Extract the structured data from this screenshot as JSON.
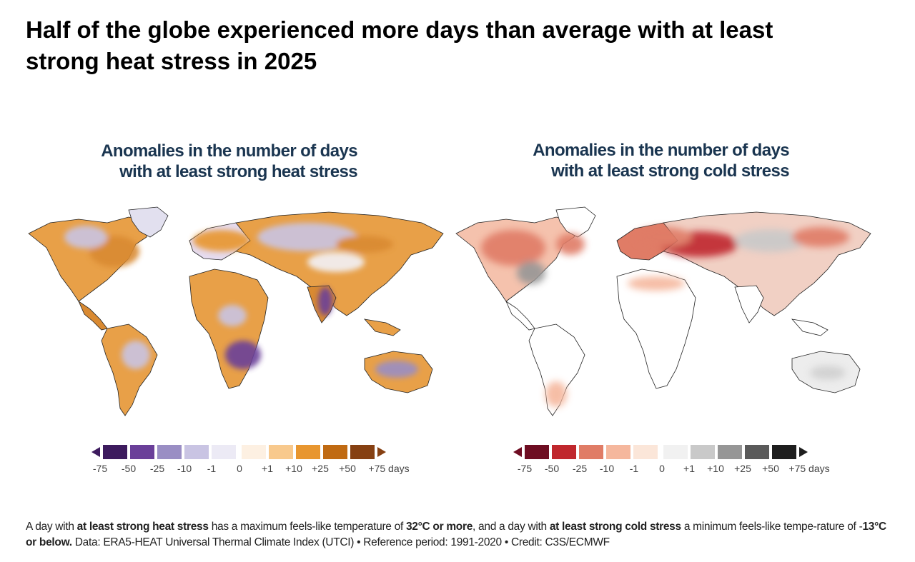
{
  "title": "Half of the globe experienced more days than average with at least strong heat stress in 2025",
  "panels": {
    "heat": {
      "title_line1": "Anomalies in the number of days",
      "title_line2": "with at least strong heat stress",
      "legend_ticks": [
        "-75",
        "-50",
        "-25",
        "-10",
        "-1",
        "0",
        "+1",
        "+10",
        "+25",
        "+50",
        "+75 days"
      ],
      "legend_colors": [
        "#3d1b5e",
        "#6a3f99",
        "#9a8ec4",
        "#c9c4e3",
        "#eceaf5",
        "#fdf0e2",
        "#f8c98d",
        "#e8962f",
        "#c06a12",
        "#864012"
      ],
      "arrow_low_color": "#3d1b5e",
      "arrow_high_color": "#864012"
    },
    "cold": {
      "title_line1": "Anomalies in the number of days",
      "title_line2": "with at least strong cold stress",
      "legend_ticks": [
        "-75",
        "-50",
        "-25",
        "-10",
        "-1",
        "0",
        "+1",
        "+10",
        "+25",
        "+50",
        "+75 days"
      ],
      "legend_colors": [
        "#6e0d22",
        "#c0272d",
        "#e07c66",
        "#f5b79d",
        "#fbe6d9",
        "#f1f1f1",
        "#c9c9c9",
        "#969696",
        "#5a5a5a",
        "#1e1e1e"
      ],
      "arrow_low_color": "#6e0d22",
      "arrow_high_color": "#1e1e1e"
    }
  },
  "footnote": {
    "p1": "A day with ",
    "b1": "at least strong heat stress",
    "p2": " has a maximum feels-like temperature of ",
    "b2": "32°C or more",
    "p3": ", and a day with ",
    "b3": "at least strong cold stress",
    "p4": " a minimum feels-like tempe-rature of -",
    "b4": "13°C or below.",
    "p5": " Data: ERA5-HEAT Universal Thermal Climate Index (UTCI) • Reference period: 1991-2020 • Credit: C3S/ECMWF"
  }
}
